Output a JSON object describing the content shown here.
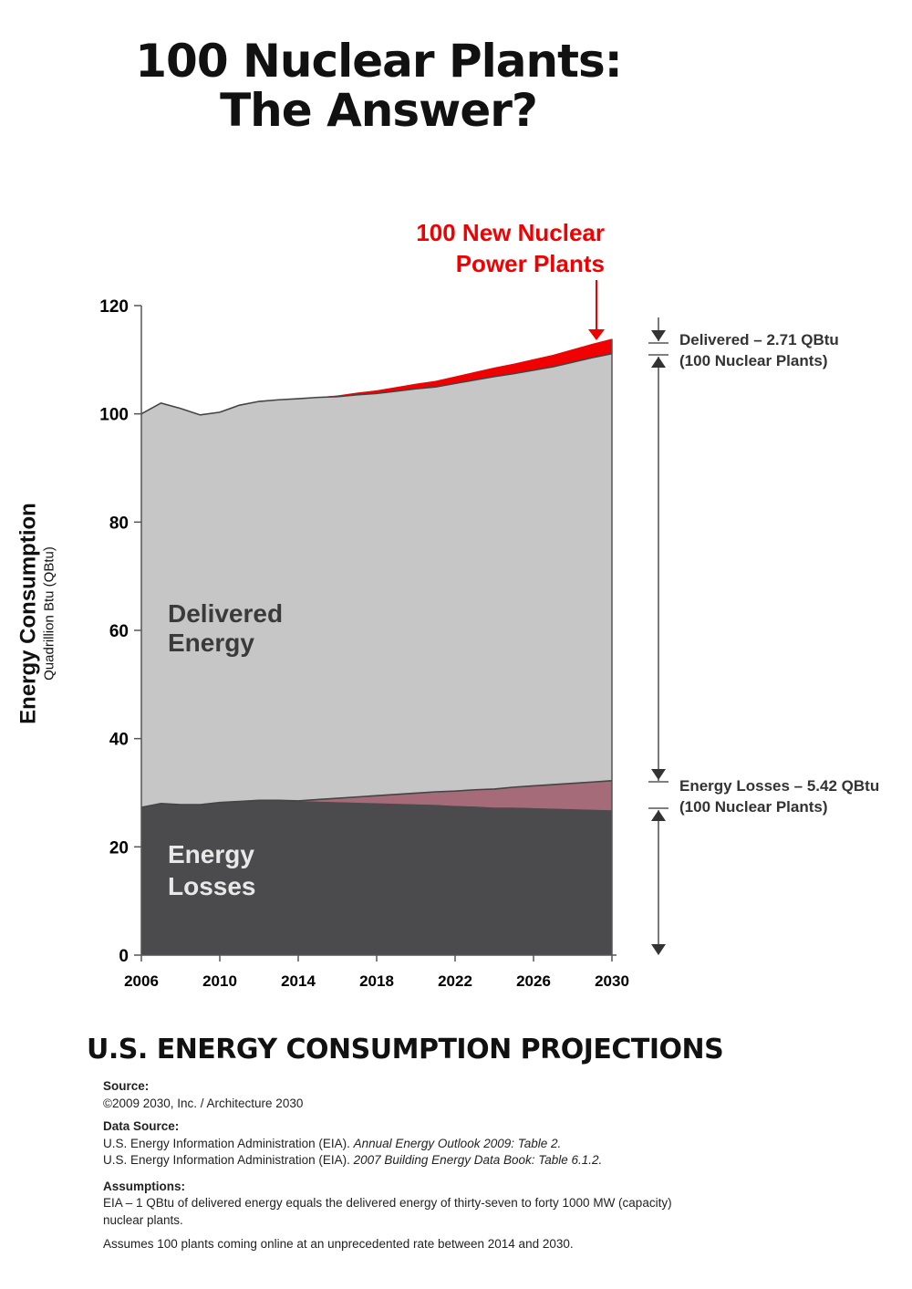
{
  "title": {
    "line1": "100 Nuclear Plants:",
    "line2": "The Answer?"
  },
  "callout": {
    "line1": "100 New Nuclear",
    "line2": "Power Plants",
    "color": "#f00000"
  },
  "chart_data": {
    "type": "area",
    "stacked": true,
    "x": [
      2006,
      2007,
      2008,
      2009,
      2010,
      2011,
      2012,
      2013,
      2014,
      2015,
      2016,
      2017,
      2018,
      2019,
      2020,
      2021,
      2022,
      2023,
      2024,
      2025,
      2026,
      2027,
      2028,
      2029,
      2030
    ],
    "xticks": [
      2006,
      2010,
      2014,
      2018,
      2022,
      2026,
      2030
    ],
    "yticks": [
      0,
      20,
      40,
      60,
      80,
      100,
      120
    ],
    "ylim": [
      0,
      120
    ],
    "xlim": [
      2006,
      2030
    ],
    "ylabel": "Energy Consumption",
    "ylabel_sub": "Quadrillion Btu (QBtu)",
    "grid": false,
    "series": [
      {
        "name": "Energy Losses",
        "color": "#4b4b4d",
        "values": [
          27.3,
          28.0,
          27.8,
          27.8,
          28.2,
          28.4,
          28.6,
          28.6,
          28.5,
          28.4,
          28.3,
          28.2,
          28.1,
          28.0,
          27.9,
          27.8,
          27.6,
          27.5,
          27.3,
          27.3,
          27.2,
          27.1,
          27.0,
          26.9,
          26.8
        ]
      },
      {
        "color": "#a66b78",
        "values": [
          0,
          0,
          0,
          0,
          0,
          0,
          0,
          0,
          0,
          0.34,
          0.68,
          1.02,
          1.36,
          1.69,
          2.03,
          2.37,
          2.71,
          3.05,
          3.39,
          3.73,
          4.07,
          4.4,
          4.74,
          5.08,
          5.42
        ]
      },
      {
        "name": "Delivered Energy",
        "color": "#c6c6c6",
        "values": [
          72.7,
          74.0,
          73.2,
          72.0,
          72.1,
          73.2,
          73.7,
          74.0,
          74.3,
          74.3,
          74.2,
          74.3,
          74.3,
          74.5,
          74.7,
          74.8,
          75.3,
          75.7,
          76.2,
          76.4,
          76.8,
          77.2,
          77.8,
          78.4,
          78.9
        ]
      },
      {
        "color": "#f00000",
        "values": [
          0,
          0,
          0,
          0,
          0,
          0,
          0,
          0,
          0,
          0,
          0.18,
          0.36,
          0.54,
          0.72,
          0.9,
          1.08,
          1.26,
          1.45,
          1.63,
          1.81,
          1.99,
          2.17,
          2.35,
          2.53,
          2.71
        ]
      }
    ],
    "area_labels": {
      "delivered": [
        "Delivered",
        "Energy"
      ],
      "losses": [
        "Energy",
        "Losses"
      ]
    },
    "annotations": {
      "delivered": {
        "line1": "Delivered – 2.71 QBtu",
        "line2": "(100 Nuclear Plants)"
      },
      "losses": {
        "line1": "Energy Losses – 5.42 QBtu",
        "line2": "(100 Nuclear Plants)"
      }
    }
  },
  "subtitle": "U.S. ENERGY CONSUMPTION PROJECTIONS",
  "notes": {
    "source_h": "Source:",
    "source": "©2009 2030, Inc. / Architecture 2030",
    "data_source_h": "Data Source:",
    "ds1_a": "U.S. Energy Information Administration (EIA). ",
    "ds1_b": "Annual Energy Outlook 2009: Table 2.",
    "ds2_a": "U.S. Energy Information Administration (EIA). ",
    "ds2_b": "2007 Building Energy Data Book: Table 6.1.2.",
    "assumptions_h": "Assumptions:",
    "a1": "EIA – 1 QBtu of delivered energy equals the delivered energy of thirty-seven to forty 1000 MW (capacity) nuclear plants.",
    "a2": "Assumes 100 plants coming online at an unprecedented rate between 2014 and 2030."
  }
}
